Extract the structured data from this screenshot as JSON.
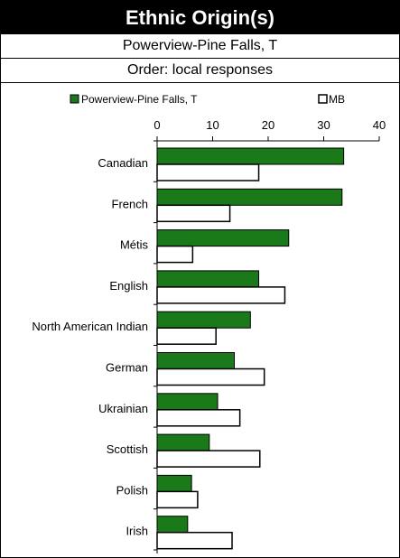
{
  "title": "Ethnic Origin(s)",
  "subtitle": "Powerview-Pine Falls, T",
  "order_note": "Order: local responses",
  "colors": {
    "local": "#1a7a1a",
    "mb": "#ffffff",
    "outline": "#000000"
  },
  "chart_data": {
    "type": "bar",
    "orientation": "horizontal",
    "categories": [
      "Canadian",
      "French",
      "Métis",
      "English",
      "North American Indian",
      "German",
      "Ukrainian",
      "Scottish",
      "Polish",
      "Irish"
    ],
    "series": [
      {
        "name": "Powerview-Pine Falls, T",
        "values": [
          33.6,
          33.3,
          23.7,
          18.3,
          16.8,
          13.9,
          10.9,
          9.4,
          6.2,
          5.5
        ]
      },
      {
        "name": "MB",
        "values": [
          18.3,
          13.1,
          6.4,
          23.0,
          10.6,
          19.3,
          14.9,
          18.5,
          7.3,
          13.5
        ]
      }
    ],
    "xlim": [
      0,
      40
    ],
    "xticks": [
      0,
      10,
      20,
      30,
      40
    ],
    "legend_position": "top",
    "grid": false
  }
}
